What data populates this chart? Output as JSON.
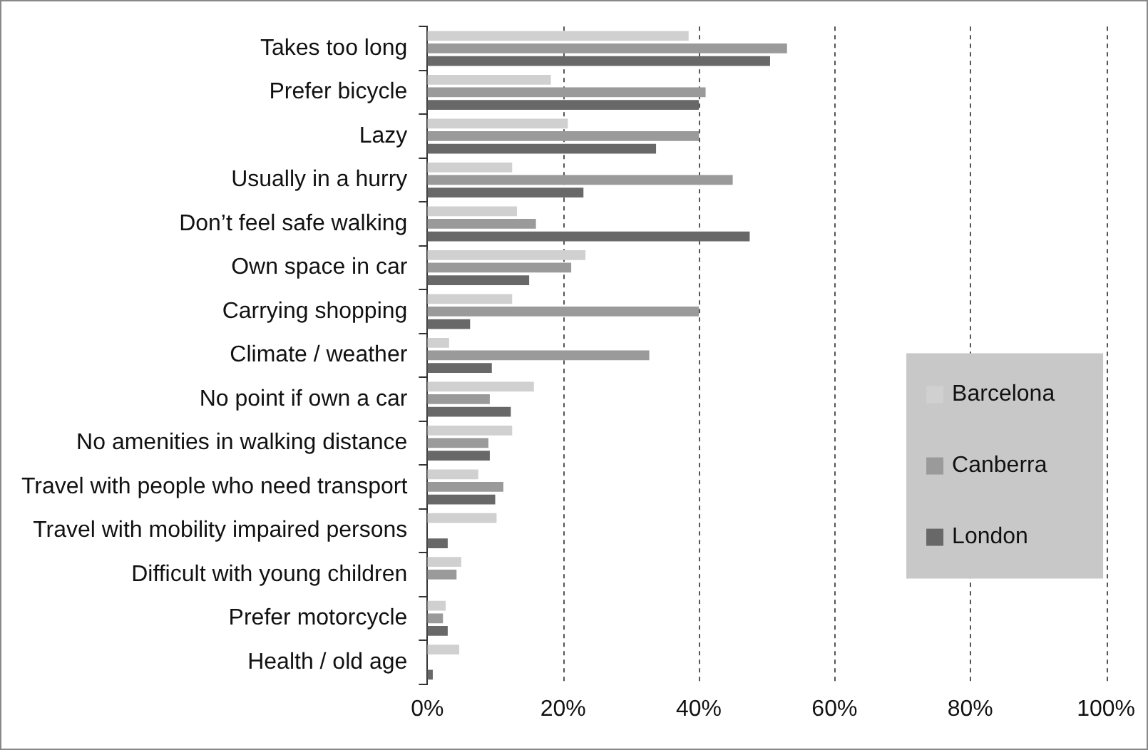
{
  "chart_data": {
    "type": "bar",
    "orientation": "horizontal",
    "categories": [
      "Takes too long",
      "Prefer bicycle",
      "Lazy",
      "Usually in a hurry",
      "Don’t feel safe walking",
      "Own space in car",
      "Carrying shopping",
      "Climate / weather",
      "No point if own a car",
      "No amenities in walking distance",
      "Travel with people who need transport",
      "Travel with mobility impaired persons",
      "Difficult with young children",
      "Prefer motorcycle",
      "Health / old age"
    ],
    "series": [
      {
        "name": "Barcelona",
        "color": "#d0d0d0",
        "values": [
          38.5,
          18.2,
          20.7,
          12.5,
          13.2,
          23.3,
          12.5,
          3.2,
          15.7,
          12.5,
          7.5,
          10.2,
          5,
          2.7,
          4.7
        ]
      },
      {
        "name": "Canberra",
        "color": "#9a9a9a",
        "values": [
          53,
          41,
          40,
          45,
          16,
          21.2,
          40,
          32.7,
          9.2,
          9,
          11.2,
          0,
          4.3,
          2.3,
          0
        ]
      },
      {
        "name": "London",
        "color": "#686868",
        "values": [
          50.5,
          40,
          33.7,
          23,
          47.5,
          15,
          6.3,
          9.5,
          12.3,
          9.2,
          10,
          3,
          0,
          3,
          0.8
        ]
      }
    ],
    "xlim": [
      0,
      100
    ],
    "xticks": [
      {
        "value": 0,
        "label": "0%"
      },
      {
        "value": 20,
        "label": "20%"
      },
      {
        "value": 40,
        "label": "40%"
      },
      {
        "value": 60,
        "label": "60%"
      },
      {
        "value": 80,
        "label": "80%"
      },
      {
        "value": 100,
        "label": "100%"
      }
    ],
    "grid": "x",
    "legend": "bottom right"
  }
}
